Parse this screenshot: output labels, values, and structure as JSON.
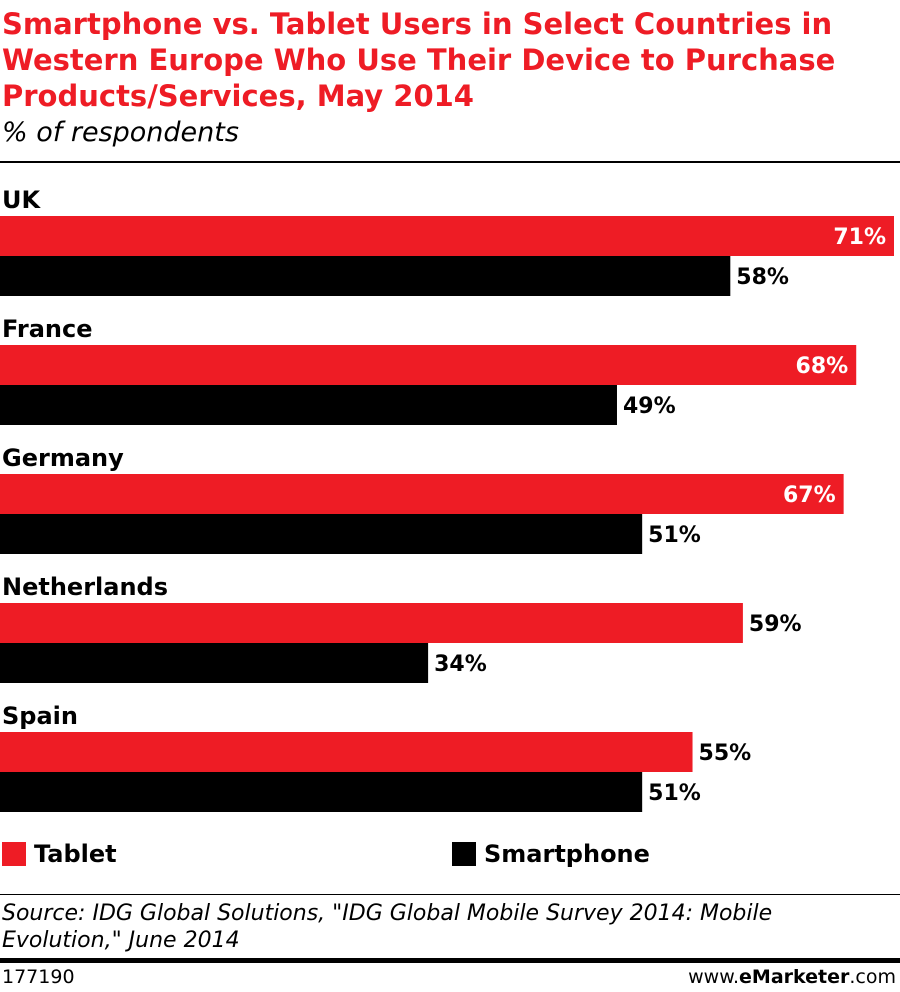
{
  "chart_data": {
    "type": "bar",
    "orientation": "horizontal",
    "title": "Smartphone vs. Tablet Users in Select Countries in Western Europe Who Use Their Device to Purchase Products/Services, May 2014",
    "subtitle": "% of respondents",
    "categories": [
      "UK",
      "France",
      "Germany",
      "Netherlands",
      "Spain"
    ],
    "series": [
      {
        "name": "Tablet",
        "color": "#ee1c25",
        "values": [
          71,
          68,
          67,
          59,
          55
        ]
      },
      {
        "name": "Smartphone",
        "color": "#000000",
        "values": [
          58,
          49,
          51,
          34,
          51
        ]
      }
    ],
    "value_suffix": "%",
    "xlim": [
      0,
      71
    ],
    "grid": false,
    "legend_position": "bottom"
  },
  "footer": {
    "source": "Source: IDG Global Solutions, \"IDG Global Mobile Survey 2014: Mobile Evolution,\" June 2014",
    "chart_id": "177190",
    "brand_prefix": "www.",
    "brand_name": "eMarketer",
    "brand_suffix": ".com"
  }
}
